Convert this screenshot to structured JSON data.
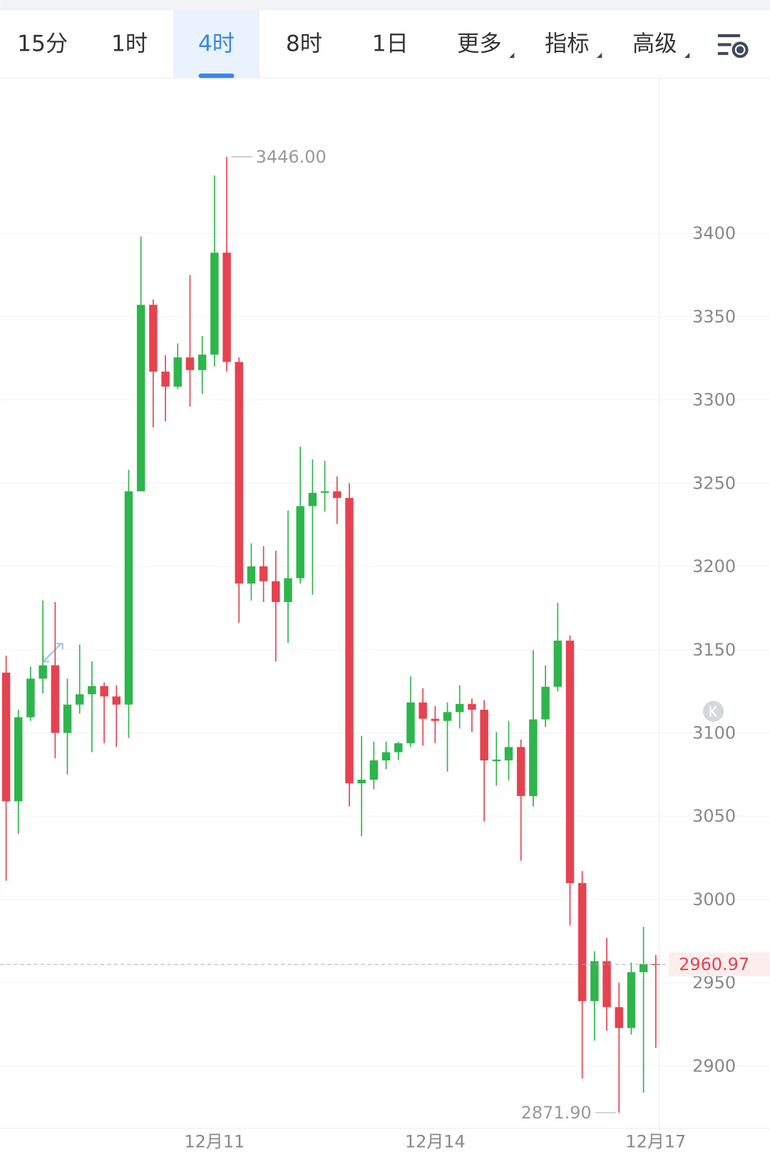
{
  "tabs": [
    {
      "label": "15分"
    },
    {
      "label": "1时"
    },
    {
      "label": "4时"
    },
    {
      "label": "8时"
    },
    {
      "label": "1日"
    },
    {
      "label": "更多",
      "dropdown": true
    },
    {
      "label": "指标",
      "dropdown": true
    },
    {
      "label": "高级",
      "dropdown": true
    }
  ],
  "active_tab": 2,
  "chart_data": {
    "type": "candlestick",
    "categories": [
      null,
      null,
      null,
      null,
      null,
      null,
      null,
      null,
      null,
      null,
      null,
      null,
      null,
      null,
      null,
      null,
      null,
      "12月11",
      null,
      null,
      null,
      null,
      null,
      null,
      null,
      null,
      null,
      null,
      null,
      null,
      null,
      null,
      null,
      null,
      null,
      "12月14",
      null,
      null,
      null,
      null,
      null,
      null,
      null,
      null,
      null,
      null,
      null,
      null,
      null,
      null,
      null,
      null,
      null,
      "12月17"
    ],
    "series": {
      "open": [
        3136.2,
        3058.9,
        3109.4,
        3132.6,
        3140.6,
        3100.0,
        3117.0,
        3123.2,
        3128.1,
        3121.9,
        3117.0,
        3245.1,
        3357.1,
        3317.0,
        3308.0,
        3325.5,
        3317.9,
        3327.2,
        3388.4,
        3322.8,
        3189.7,
        3200.0,
        3191.1,
        3178.6,
        3192.9,
        3236.2,
        3244.2,
        3245.1,
        3241.1,
        3069.7,
        3071.9,
        3083.5,
        3088.4,
        3093.8,
        3118.3,
        3108.5,
        3107.2,
        3112.5,
        3117.4,
        3113.9,
        3083.0,
        3083.5,
        3091.5,
        3062.1,
        3108.1,
        3127.7,
        3155.4,
        3009.8,
        2938.9,
        2962.9,
        2935.3,
        2922.8,
        2956.3,
        2961.2
      ],
      "high": [
        3146.4,
        3113.9,
        3139.7,
        3179.5,
        3178.6,
        3132.6,
        3153.1,
        3142.9,
        3130.4,
        3128.6,
        3258.0,
        3398.2,
        3360.3,
        3326.8,
        3333.9,
        3375.0,
        3338.4,
        3434.8,
        3446.0,
        3325.5,
        3213.9,
        3212.1,
        3209.4,
        3233.5,
        3271.9,
        3264.3,
        3263.4,
        3254.0,
        3250.0,
        3098.2,
        3094.7,
        3094.7,
        3094.7,
        3133.9,
        3126.8,
        3116.1,
        3118.3,
        3128.6,
        3120.6,
        3119.7,
        3100.5,
        3107.2,
        3096.0,
        3149.6,
        3140.6,
        3178.1,
        3158.5,
        3017.0,
        2968.8,
        2976.8,
        2950.0,
        2962.1,
        2983.5,
        2966.5
      ],
      "low": [
        3011.2,
        3039.3,
        3107.2,
        3123.7,
        3084.8,
        3075.0,
        3111.6,
        3088.4,
        3093.8,
        3091.5,
        3096.9,
        3245.1,
        3283.5,
        3287.1,
        3306.7,
        3296.0,
        3303.6,
        3320.1,
        3317.0,
        3166.1,
        3179.5,
        3178.6,
        3142.9,
        3154.0,
        3189.7,
        3183.0,
        3233.0,
        3225.5,
        3055.8,
        3037.9,
        3066.1,
        3078.2,
        3083.5,
        3091.5,
        3092.4,
        3093.8,
        3076.8,
        3102.7,
        3100.5,
        3046.9,
        3068.3,
        3071.5,
        3023.2,
        3055.8,
        3103.6,
        3125.0,
        2984.4,
        2892.4,
        2915.2,
        2921.0,
        2871.9,
        2918.8,
        2884.0,
        2910.8
      ],
      "close": [
        3058.9,
        3109.4,
        3132.6,
        3140.6,
        3100.0,
        3117.0,
        3123.2,
        3128.1,
        3121.9,
        3117.0,
        3245.1,
        3357.1,
        3317.0,
        3308.0,
        3325.5,
        3317.9,
        3327.2,
        3388.4,
        3322.8,
        3189.7,
        3200.0,
        3191.1,
        3178.6,
        3192.9,
        3236.2,
        3244.2,
        3245.1,
        3241.1,
        3069.7,
        3071.9,
        3083.5,
        3088.4,
        3093.8,
        3118.3,
        3108.5,
        3107.2,
        3112.5,
        3117.4,
        3113.9,
        3083.5,
        3084.0,
        3091.5,
        3062.1,
        3108.1,
        3127.7,
        3155.4,
        3009.8,
        2938.9,
        2962.9,
        2935.3,
        2922.8,
        2956.3,
        2961.2,
        2960.97
      ]
    },
    "up_color": "#2eb54c",
    "down_color": "#e5434f",
    "ylim": [
      2862.5,
      3493.3
    ],
    "yticks": [
      2900,
      2950,
      3000,
      3050,
      3100,
      3150,
      3200,
      3250,
      3300,
      3350,
      3400
    ],
    "grid": true,
    "annotations": [
      {
        "value": 3446,
        "label": "3446.00"
      },
      {
        "value": 2871.9,
        "label": "2871.90"
      }
    ],
    "last_price": 2960.97
  }
}
